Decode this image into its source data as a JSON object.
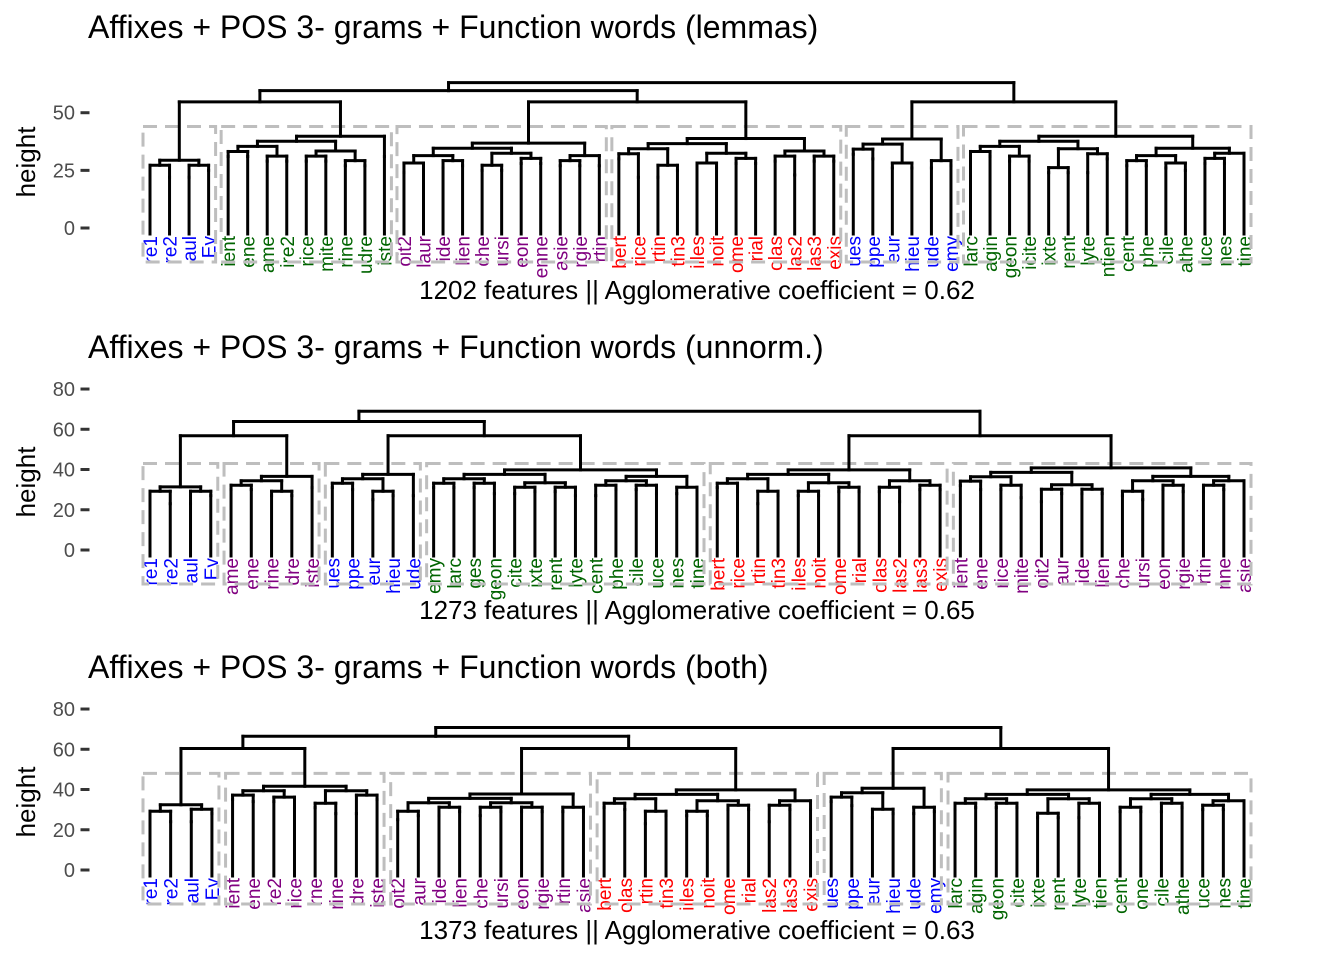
{
  "chart_data": [
    {
      "type": "dendrogram",
      "title": "Affixes + POS 3- grams + Function words (lemmas)",
      "ylabel": "height",
      "xlabel": "1202 features || Agglomerative coefficient =  0.62",
      "yticks": [
        0,
        25,
        50
      ],
      "ylim": [
        0,
        72
      ],
      "cut_height": 44,
      "clusters": [
        {
          "color": "#0000ff",
          "leaves": [
            {
              "label": "re1",
              "h": 25
            },
            {
              "label": "re2",
              "h": 22
            },
            {
              "label": "aul",
              "h": 22
            },
            {
              "label": "Ev",
              "h": 25
            }
          ]
        },
        {
          "color": "#006400",
          "leaves": [
            {
              "label": "ient",
              "h": 31
            },
            {
              "label": "ene",
              "h": 31
            },
            {
              "label": "ame",
              "h": 29
            },
            {
              "label": "ire2",
              "h": 29
            },
            {
              "label": "rice",
              "h": 29
            },
            {
              "label": "mite",
              "h": 29
            },
            {
              "label": "rine",
              "h": 27
            },
            {
              "label": "udre",
              "h": 27
            },
            {
              "label": "iste",
              "h": 31
            }
          ]
        },
        {
          "color": "#800080",
          "leaves": [
            {
              "label": "oit2",
              "h": 24
            },
            {
              "label": "laur",
              "h": 26
            },
            {
              "label": "ide",
              "h": 26
            },
            {
              "label": "lien",
              "h": 27
            },
            {
              "label": "che",
              "h": 25
            },
            {
              "label": "ursi",
              "h": 25
            },
            {
              "label": "eon",
              "h": 28
            },
            {
              "label": "enne",
              "h": 28
            },
            {
              "label": "asie",
              "h": 27
            },
            {
              "label": "rgie",
              "h": 27
            },
            {
              "label": "rtin",
              "h": 27
            }
          ]
        },
        {
          "color": "#ff0000",
          "leaves": [
            {
              "label": "bert",
              "h": 30
            },
            {
              "label": "rice",
              "h": 22
            },
            {
              "label": "rtin",
              "h": 22
            },
            {
              "label": "tin3",
              "h": 25
            },
            {
              "label": "illes",
              "h": 26
            },
            {
              "label": "noit",
              "h": 26
            },
            {
              "label": "ome",
              "h": 28
            },
            {
              "label": "rial",
              "h": 28
            },
            {
              "label": "olas",
              "h": 29
            },
            {
              "label": "las2",
              "h": 23
            },
            {
              "label": "las3",
              "h": 29
            },
            {
              "label": "exis",
              "h": 29
            }
          ]
        },
        {
          "color": "#0000ff",
          "leaves": [
            {
              "label": "ues",
              "h": 32
            },
            {
              "label": "ppe",
              "h": 30
            },
            {
              "label": "eur",
              "h": 26
            },
            {
              "label": "hieu",
              "h": 26
            },
            {
              "label": "ude",
              "h": 26
            },
            {
              "label": "emy",
              "h": 27
            }
          ]
        },
        {
          "color": "#006400",
          "leaves": [
            {
              "label": "larc",
              "h": 27
            },
            {
              "label": "agin",
              "h": 31
            },
            {
              "label": "geon",
              "h": 29
            },
            {
              "label": "icite",
              "h": 29
            },
            {
              "label": "ixte",
              "h": 24
            },
            {
              "label": "rent",
              "h": 24
            },
            {
              "label": "lyte",
              "h": 24
            },
            {
              "label": "ntien",
              "h": 30
            },
            {
              "label": "cent",
              "h": 27
            },
            {
              "label": "phe",
              "h": 27
            },
            {
              "label": "cile",
              "h": 26
            },
            {
              "label": "athe",
              "h": 25
            },
            {
              "label": "uce",
              "h": 28
            },
            {
              "label": "nes",
              "h": 28
            },
            {
              "label": "tine",
              "h": 28
            }
          ]
        }
      ]
    },
    {
      "type": "dendrogram",
      "title": "Affixes + POS 3- grams + Function words (unnorm.)",
      "ylabel": "height",
      "xlabel": "1273 features || Agglomerative coefficient =  0.65",
      "yticks": [
        0,
        20,
        40,
        60,
        80
      ],
      "ylim": [
        0,
        82
      ],
      "cut_height": 43,
      "clusters": [
        {
          "color": "#0000ff",
          "leaves": [
            {
              "label": "re1",
              "h": 27
            },
            {
              "label": "re2",
              "h": 23
            },
            {
              "label": "aul",
              "h": 23
            },
            {
              "label": "Ev",
              "h": 27
            }
          ]
        },
        {
          "color": "#800080",
          "leaves": [
            {
              "label": "ame",
              "h": 30
            },
            {
              "label": "ene",
              "h": 30
            },
            {
              "label": "rine",
              "h": 27
            },
            {
              "label": "dre",
              "h": 27
            },
            {
              "label": "iste",
              "h": 31
            }
          ]
        },
        {
          "color": "#0000ff",
          "leaves": [
            {
              "label": "ues",
              "h": 31
            },
            {
              "label": "ppe",
              "h": 30
            },
            {
              "label": "eur",
              "h": 25
            },
            {
              "label": "hieu",
              "h": 27
            },
            {
              "label": "ude",
              "h": 27
            }
          ]
        },
        {
          "color": "#006400",
          "leaves": [
            {
              "label": "emy",
              "h": 31
            },
            {
              "label": "larc",
              "h": 31
            },
            {
              "label": "ges",
              "h": 31
            },
            {
              "label": "geon",
              "h": 28
            },
            {
              "label": "cite",
              "h": 28
            },
            {
              "label": "ixte",
              "h": 29
            },
            {
              "label": "rent",
              "h": 29
            },
            {
              "label": "lyte",
              "h": 27
            },
            {
              "label": "cent",
              "h": 27
            },
            {
              "label": "phe",
              "h": 30
            },
            {
              "label": "cile",
              "h": 30
            },
            {
              "label": "uce",
              "h": 28
            },
            {
              "label": "nes",
              "h": 28
            },
            {
              "label": "tine",
              "h": 29
            }
          ]
        },
        {
          "color": "#ff0000",
          "leaves": [
            {
              "label": "bert",
              "h": 31
            },
            {
              "label": "rice",
              "h": 29
            },
            {
              "label": "rtin",
              "h": 23
            },
            {
              "label": "tin3",
              "h": 27
            },
            {
              "label": "illes",
              "h": 27
            },
            {
              "label": "noit",
              "h": 27
            },
            {
              "label": "ome",
              "h": 29
            },
            {
              "label": "rial",
              "h": 29
            },
            {
              "label": "olas",
              "h": 29
            },
            {
              "label": "las2",
              "h": 24
            },
            {
              "label": "las3",
              "h": 30
            },
            {
              "label": "exis",
              "h": 30
            }
          ]
        },
        {
          "color": "#800080",
          "leaves": [
            {
              "label": "ient",
              "h": 32
            },
            {
              "label": "ene",
              "h": 30
            },
            {
              "label": "rice",
              "h": 30
            },
            {
              "label": "mite",
              "h": 26
            },
            {
              "label": "oit2",
              "h": 24
            },
            {
              "label": "aur",
              "h": 28
            },
            {
              "label": "ide",
              "h": 28
            },
            {
              "label": "lien",
              "h": 28
            },
            {
              "label": "che",
              "h": 27
            },
            {
              "label": "ursi",
              "h": 25
            },
            {
              "label": "eon",
              "h": 30
            },
            {
              "label": "rgie",
              "h": 29
            },
            {
              "label": "rtin",
              "h": 29
            },
            {
              "label": "nne",
              "h": 30
            },
            {
              "label": "asie",
              "h": 30
            }
          ]
        }
      ]
    },
    {
      "type": "dendrogram",
      "title": "Affixes + POS 3- grams + Function words (both)",
      "ylabel": "height",
      "xlabel": "1373 features || Agglomerative coefficient =  0.63",
      "yticks": [
        0,
        20,
        40,
        60,
        80
      ],
      "ylim": [
        0,
        82
      ],
      "cut_height": 48,
      "clusters": [
        {
          "color": "#0000ff",
          "leaves": [
            {
              "label": "re1",
              "h": 27
            },
            {
              "label": "re2",
              "h": 24
            },
            {
              "label": "aul",
              "h": 24
            },
            {
              "label": "Ev",
              "h": 28
            }
          ]
        },
        {
          "color": "#800080",
          "leaves": [
            {
              "label": "ient",
              "h": 35
            },
            {
              "label": "ene",
              "h": 34
            },
            {
              "label": "re2",
              "h": 34
            },
            {
              "label": "rice",
              "h": 31
            },
            {
              "label": "rne",
              "h": 31
            },
            {
              "label": "rine",
              "h": 28
            },
            {
              "label": "dre",
              "h": 28
            },
            {
              "label": "iste",
              "h": 35
            }
          ]
        },
        {
          "color": "#800080",
          "leaves": [
            {
              "label": "oit2",
              "h": 25
            },
            {
              "label": "aur",
              "h": 27
            },
            {
              "label": "ide",
              "h": 27
            },
            {
              "label": "lien",
              "h": 29
            },
            {
              "label": "che",
              "h": 27
            },
            {
              "label": "ursi",
              "h": 29
            },
            {
              "label": "eon",
              "h": 29
            },
            {
              "label": "rgie",
              "h": 29
            },
            {
              "label": "rtin",
              "h": 29
            },
            {
              "label": "asie",
              "h": 29
            }
          ]
        },
        {
          "color": "#ff0000",
          "leaves": [
            {
              "label": "bert",
              "h": 31
            },
            {
              "label": "olas",
              "h": 30
            },
            {
              "label": "rtin",
              "h": 23
            },
            {
              "label": "tin3",
              "h": 27
            },
            {
              "label": "illes",
              "h": 27
            },
            {
              "label": "noit",
              "h": 27
            },
            {
              "label": "ome",
              "h": 30
            },
            {
              "label": "rial",
              "h": 30
            },
            {
              "label": "las2",
              "h": 24
            },
            {
              "label": "las3",
              "h": 30
            },
            {
              "label": "exis",
              "h": 30
            }
          ]
        },
        {
          "color": "#0000ff",
          "leaves": [
            {
              "label": "ues",
              "h": 34
            },
            {
              "label": "ppe",
              "h": 32
            },
            {
              "label": "eur",
              "h": 26
            },
            {
              "label": "hieu",
              "h": 28
            },
            {
              "label": "ude",
              "h": 28
            },
            {
              "label": "emy",
              "h": 29
            }
          ]
        },
        {
          "color": "#006400",
          "leaves": [
            {
              "label": "larc",
              "h": 30
            },
            {
              "label": "agin",
              "h": 31
            },
            {
              "label": "geon",
              "h": 31
            },
            {
              "label": "cite",
              "h": 31
            },
            {
              "label": "ixte",
              "h": 26
            },
            {
              "label": "rent",
              "h": 26
            },
            {
              "label": "lyte",
              "h": 26
            },
            {
              "label": "tien",
              "h": 31
            },
            {
              "label": "cent",
              "h": 29
            },
            {
              "label": "one",
              "h": 29
            },
            {
              "label": "cile",
              "h": 29
            },
            {
              "label": "athe",
              "h": 31
            },
            {
              "label": "uce",
              "h": 30
            },
            {
              "label": "nes",
              "h": 30
            },
            {
              "label": "tine",
              "h": 30
            }
          ]
        }
      ]
    }
  ]
}
